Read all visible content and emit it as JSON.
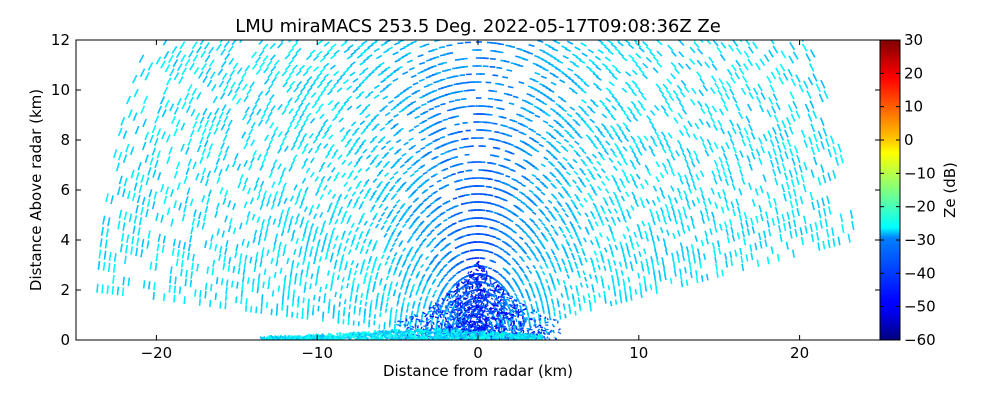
{
  "chart_data": {
    "type": "heatmap",
    "title": "LMU miraMACS 253.5 Deg. 2022-05-17T09:08:36Z  Ze",
    "xlabel": "Distance from radar (km)",
    "ylabel": "Distance Above radar  (km)",
    "xlim": [
      -25,
      25
    ],
    "ylim": [
      0,
      12
    ],
    "x_ticks": [
      -20,
      -10,
      0,
      10,
      20
    ],
    "x_tick_labels": [
      "−20",
      "−10",
      "0",
      "10",
      "20"
    ],
    "y_ticks": [
      0,
      2,
      4,
      6,
      8,
      10,
      12
    ],
    "y_tick_labels": [
      "0",
      "2",
      "4",
      "6",
      "8",
      "10",
      "12"
    ],
    "colorbar": {
      "label": "Ze (dB)",
      "range": [
        -60,
        30
      ],
      "ticks": [
        30,
        20,
        10,
        0,
        -10,
        -20,
        -30,
        -40,
        -50,
        -60
      ],
      "tick_labels": [
        "30",
        "20",
        "10",
        "0",
        "−10",
        "−20",
        "−30",
        "−40",
        "−50",
        "−60"
      ],
      "colormap": "jet"
    },
    "scan": {
      "type": "RHI",
      "azimuth_deg": 253.5,
      "max_range_km": 24,
      "min_elevation_left_deg": 5,
      "min_elevation_right_deg": 10
    },
    "field_summary": {
      "far_range_ze_db": -29,
      "near_zenith_ze_db": -45,
      "surface_clutter_ze_db": -28
    },
    "grid": false
  }
}
